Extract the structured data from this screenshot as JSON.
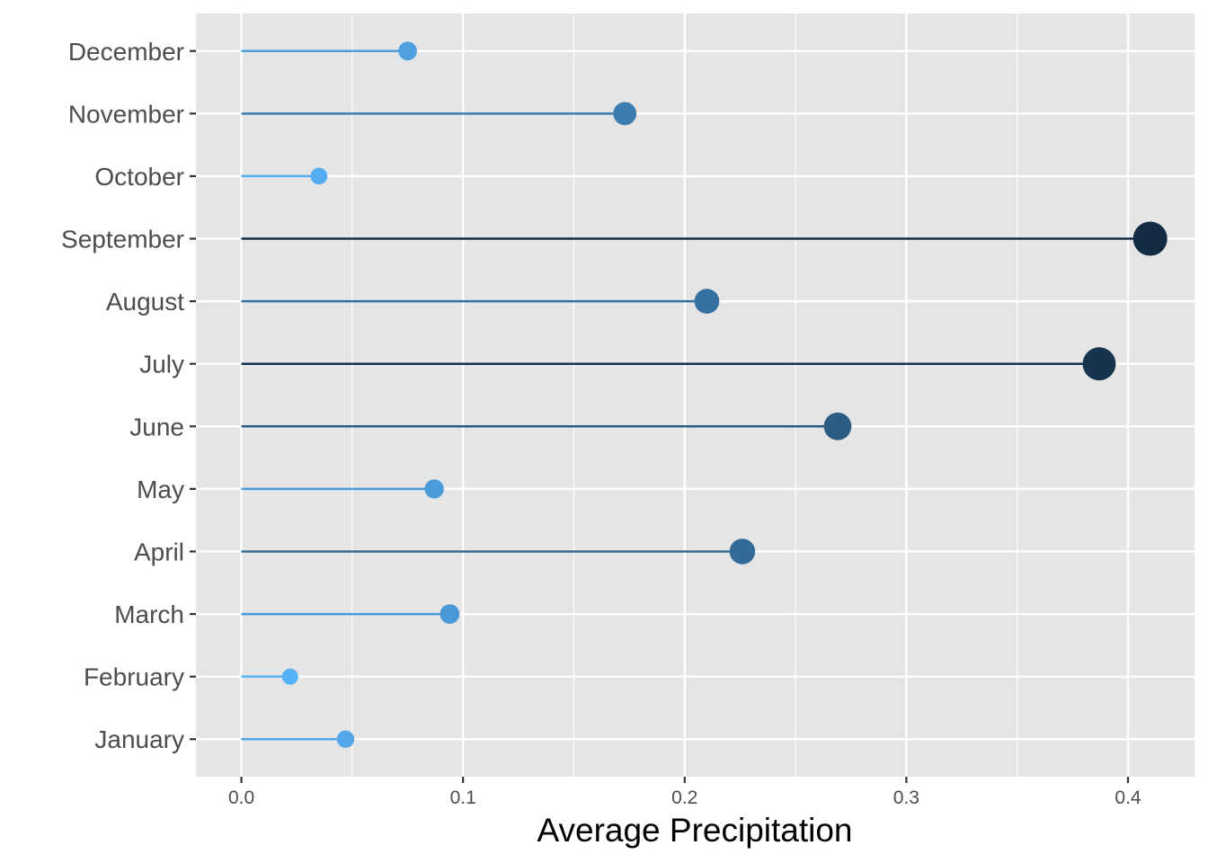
{
  "chart_data": {
    "type": "lollipop",
    "xlabel": "Average Precipitation",
    "ylabel": "",
    "xlim": [
      -0.0205,
      0.43
    ],
    "x_ticks": [
      0.0,
      0.1,
      0.2,
      0.3,
      0.4
    ],
    "x_tick_labels": [
      "0.0",
      "0.1",
      "0.2",
      "0.3",
      "0.4"
    ],
    "grid": true,
    "categories": [
      "January",
      "February",
      "March",
      "April",
      "May",
      "June",
      "July",
      "August",
      "September",
      "October",
      "November",
      "December"
    ],
    "values": [
      0.047,
      0.022,
      0.094,
      0.226,
      0.087,
      0.269,
      0.387,
      0.21,
      0.41,
      0.035,
      0.173,
      0.075
    ],
    "colors": {
      "low": "#56B1F7",
      "high": "#132B43",
      "panel": "#E5E5E5",
      "grid": "#FFFFFF"
    }
  }
}
